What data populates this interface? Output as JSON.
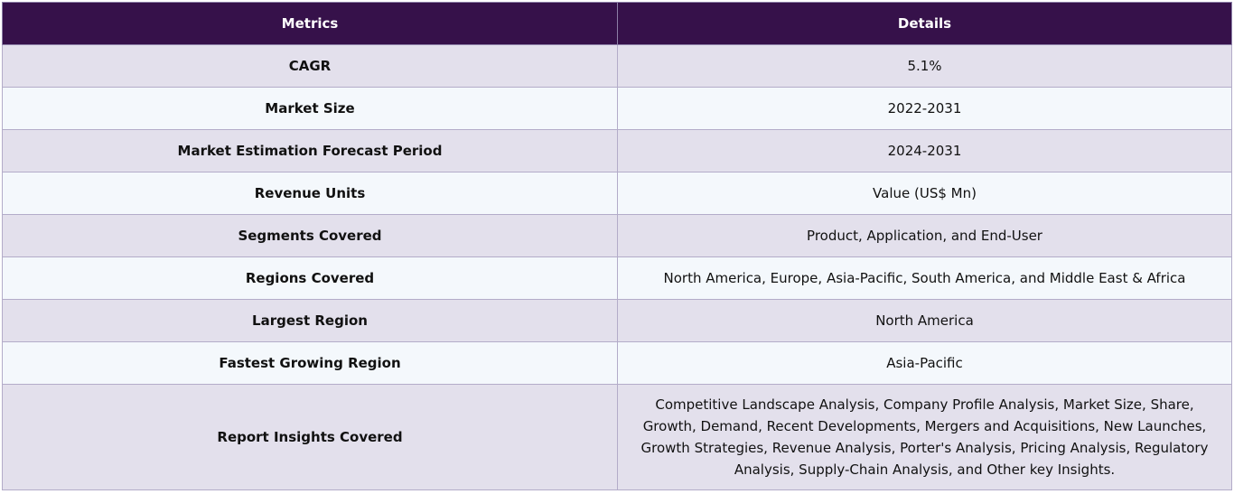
{
  "table": {
    "headers": {
      "metrics": "Metrics",
      "details": "Details"
    },
    "rows": [
      {
        "metric": "CAGR",
        "detail": "5.1%"
      },
      {
        "metric": "Market Size",
        "detail": "2022-2031"
      },
      {
        "metric": "Market Estimation Forecast Period",
        "detail": "2024-2031"
      },
      {
        "metric": "Revenue Units",
        "detail": "Value (US$ Mn)"
      },
      {
        "metric": "Segments Covered",
        "detail": "Product, Application, and End-User"
      },
      {
        "metric": "Regions Covered",
        "detail": "North America, Europe, Asia-Pacific, South America, and Middle East & Africa"
      },
      {
        "metric": "Largest Region",
        "detail": "North America"
      },
      {
        "metric": "Fastest Growing Region",
        "detail": "Asia-Pacific"
      },
      {
        "metric": "Report Insights Covered",
        "detail": "Competitive Landscape Analysis, Company Profile Analysis, Market Size, Share, Growth, Demand, Recent Developments, Mergers and Acquisitions, New Launches, Growth Strategies, Revenue Analysis, Porter's Analysis, Pricing Analysis, Regulatory Analysis, Supply-Chain Analysis, and Other key Insights."
      }
    ]
  },
  "colors": {
    "header_bg": "#36114a",
    "row_odd_bg": "#e3e0ec",
    "row_even_bg": "#f4f8fc",
    "border": "#b3acc9"
  }
}
